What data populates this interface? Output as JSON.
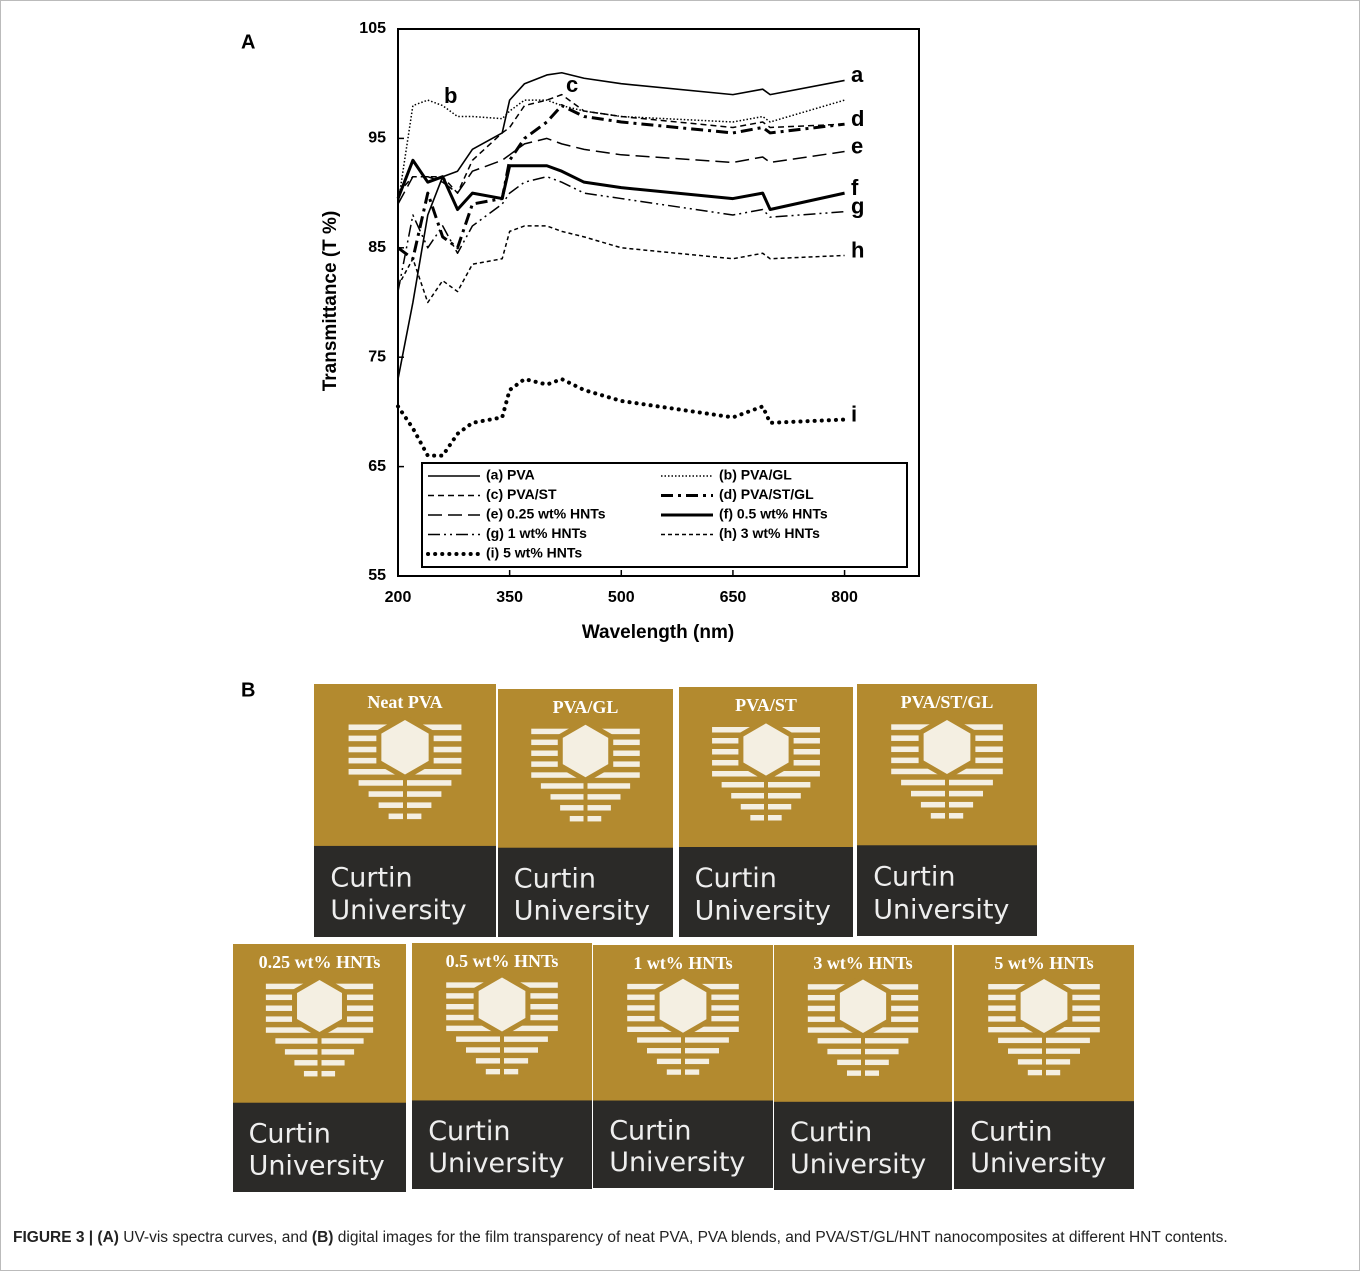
{
  "panel_labels": [
    "A",
    "B"
  ],
  "chart_data": {
    "type": "line",
    "xlabel": "Wavelength (nm)",
    "ylabel": "Transmittance (T %)",
    "x": [
      200,
      220,
      240,
      260,
      280,
      300,
      340,
      350,
      370,
      400,
      420,
      450,
      500,
      650,
      690,
      700,
      800
    ],
    "xlim": [
      200,
      900
    ],
    "xticks": [
      200,
      350,
      500,
      650,
      800
    ],
    "ylim": [
      55,
      105
    ],
    "yticks": [
      55,
      65,
      75,
      85,
      95,
      105
    ],
    "legend": "bottom",
    "series": [
      {
        "name": "(a) PVA",
        "label": "a",
        "color": "#000000",
        "style": "solid",
        "values": [
          73,
          80,
          88,
          91.5,
          92,
          94,
          95.5,
          98.5,
          100,
          100.8,
          101,
          100.5,
          100,
          99,
          99.5,
          99,
          100.3
        ]
      },
      {
        "name": "(b) PVA/GL",
        "label": "b",
        "color": "#000000",
        "style": "dotted",
        "values": [
          89,
          98,
          98.5,
          98,
          97,
          97,
          96.8,
          97.5,
          98.5,
          98.5,
          98,
          97.5,
          97,
          96.5,
          97,
          96.5,
          98.5
        ]
      },
      {
        "name": "(c) PVA/ST",
        "label": "c",
        "color": "#000000",
        "style": "dashed",
        "values": [
          90,
          91.5,
          91.5,
          91.5,
          90,
          93,
          95.5,
          96,
          98,
          98.5,
          99,
          97.5,
          97,
          96,
          96.5,
          96,
          96.3
        ]
      },
      {
        "name": "(d) PVA/ST/GL",
        "label": "d",
        "color": "#000000",
        "style": "dashdot",
        "values": [
          85,
          84,
          90,
          86,
          85,
          89,
          89.5,
          93,
          95,
          96.5,
          98,
          97,
          96.5,
          95.5,
          96,
          95.5,
          96.3
        ]
      },
      {
        "name": "(e) 0.25 wt% HNTs",
        "label": "e",
        "color": "#000000",
        "style": "longdash",
        "values": [
          89,
          91.5,
          91.5,
          91,
          90,
          92,
          93,
          93.5,
          94.5,
          95,
          94.5,
          94,
          93.5,
          92.8,
          93.3,
          92.8,
          93.8
        ]
      },
      {
        "name": "(f) 0.5 wt% HNTs",
        "label": "f",
        "color": "#000000",
        "style": "thicksolid",
        "values": [
          89.5,
          93,
          91,
          91.5,
          88.5,
          90,
          89.5,
          92.5,
          92.5,
          92.5,
          92,
          91,
          90.5,
          89.5,
          90,
          88.5,
          90
        ]
      },
      {
        "name": "(g) 1 wt% HNTs",
        "label": "g",
        "color": "#000000",
        "style": "dashdotdot",
        "values": [
          81,
          88,
          85,
          87,
          84.5,
          87,
          89,
          90,
          91,
          91.5,
          91,
          90,
          89.5,
          88,
          88.5,
          87.8,
          88.3
        ]
      },
      {
        "name": "(h) 3 wt% HNTs",
        "label": "h",
        "color": "#000000",
        "style": "shortdash",
        "values": [
          81.5,
          84,
          80,
          82,
          81,
          83.5,
          84,
          86.5,
          87,
          87,
          86.5,
          86,
          85,
          84,
          84.5,
          84,
          84.3
        ]
      },
      {
        "name": "(i) 5 wt% HNTs",
        "label": "i",
        "color": "#000000",
        "style": "dots",
        "values": [
          70.5,
          68.5,
          66,
          66,
          68,
          69,
          69.5,
          72,
          73,
          72.5,
          73,
          72,
          71,
          69.5,
          70.5,
          69,
          69.3
        ]
      }
    ]
  },
  "photos": {
    "logo_text": [
      "Curtin",
      "University"
    ],
    "top_row": [
      "Neat PVA",
      "PVA/GL",
      "PVA/ST",
      "PVA/ST/GL"
    ],
    "bottom_row": [
      "0.25 wt% HNTs",
      "0.5 wt% HNTs",
      "1 wt% HNTs",
      "3 wt% HNTs",
      "5 wt% HNTs"
    ]
  },
  "caption": [
    {
      "text": "FIGURE 3 | (A)",
      "bold": true
    },
    {
      "text": " UV-vis spectra curves, and ",
      "bold": false
    },
    {
      "text": "(B)",
      "bold": true
    },
    {
      "text": " digital images for the film transparency of neat PVA, PVA blends, and PVA/ST/GL/HNT nanocomposites at different HNT contents.",
      "bold": false
    }
  ]
}
